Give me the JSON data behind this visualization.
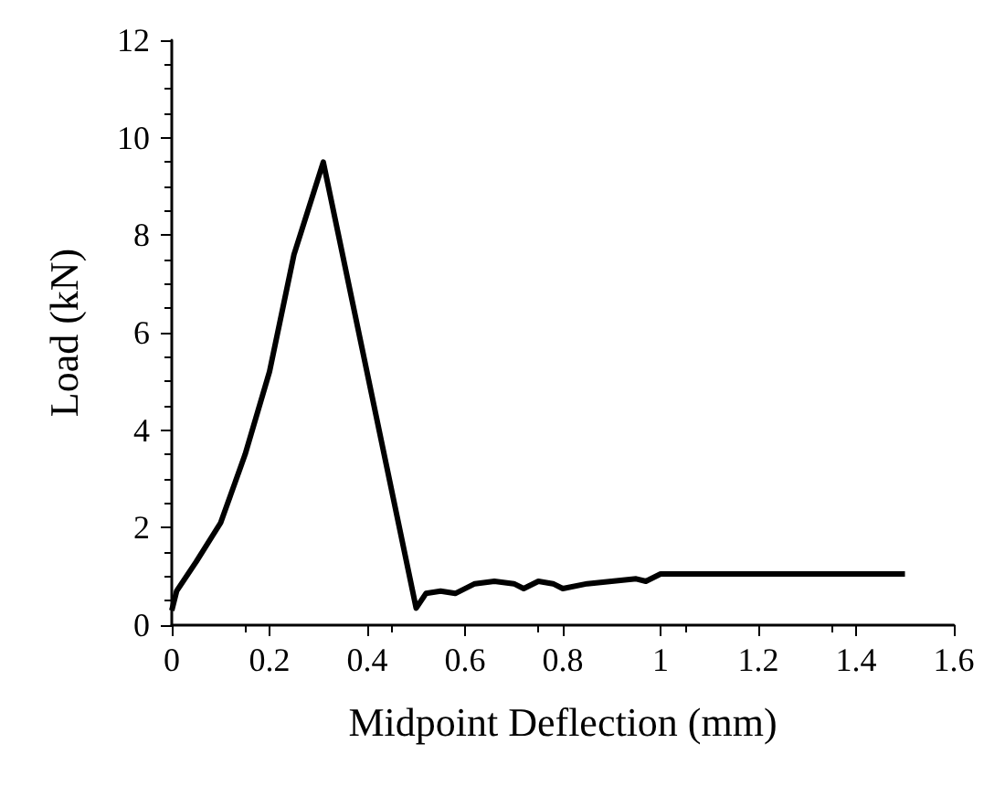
{
  "chart_data": {
    "type": "line",
    "xlabel": "Midpoint Deflection (mm)",
    "ylabel": "Load (kN)",
    "x": [
      0,
      0.01,
      0.05,
      0.1,
      0.15,
      0.2,
      0.25,
      0.31,
      0.5,
      0.52,
      0.55,
      0.58,
      0.62,
      0.66,
      0.7,
      0.72,
      0.75,
      0.78,
      0.8,
      0.85,
      0.9,
      0.95,
      0.97,
      1.0,
      1.5
    ],
    "series": [
      {
        "color": "#000000",
        "values": [
          0.3,
          0.7,
          1.3,
          2.1,
          3.5,
          5.2,
          7.6,
          9.5,
          0.35,
          0.65,
          0.7,
          0.65,
          0.85,
          0.9,
          0.85,
          0.75,
          0.9,
          0.85,
          0.75,
          0.85,
          0.9,
          0.95,
          0.9,
          1.05,
          1.05
        ]
      }
    ],
    "xlim": [
      0,
      1.6
    ],
    "xticks": [
      0,
      0.2,
      0.4,
      0.6,
      0.8,
      1,
      1.2,
      1.4,
      1.6
    ],
    "ylim": [
      0,
      12
    ],
    "yticks": [
      0,
      2,
      4,
      6,
      8,
      10,
      12
    ],
    "grid": false,
    "marker": "none",
    "line_style": "solid"
  }
}
